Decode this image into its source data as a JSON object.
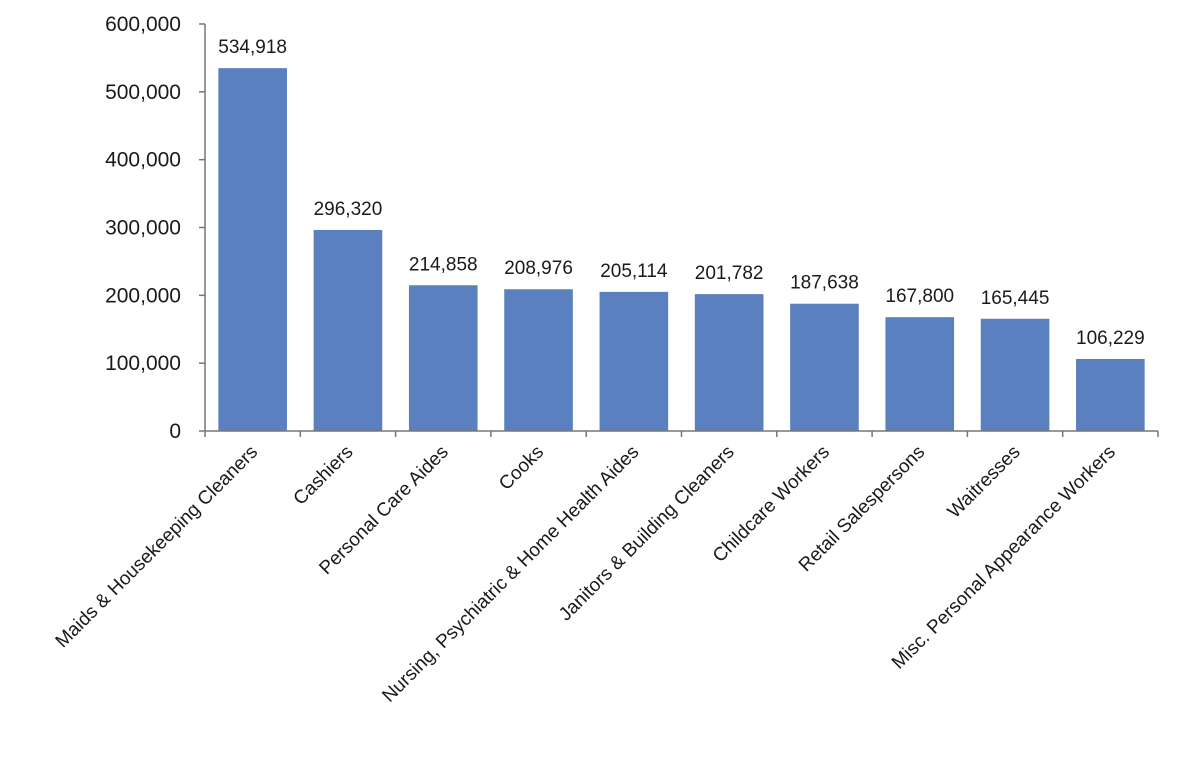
{
  "chart_data": {
    "type": "bar",
    "title": "",
    "xlabel": "",
    "ylabel": "",
    "ylim": [
      0,
      600000
    ],
    "y_ticks": [
      0,
      100000,
      200000,
      300000,
      400000,
      500000,
      600000
    ],
    "y_tick_labels": [
      "0",
      "100,000",
      "200,000",
      "300,000",
      "400,000",
      "500,000",
      "600,000"
    ],
    "grid": false,
    "legend": "none",
    "bar_color": "#5b80bf",
    "categories": [
      "Maids & Housekeeping Cleaners",
      "Cashiers",
      "Personal Care Aides",
      "Cooks",
      "Nursing, Psychiatric & Home Health Aides",
      "Janitors & Building Cleaners",
      "Childcare Workers",
      "Retail Salespersons",
      "Waitresses",
      "Misc. Personal Appearance Workers"
    ],
    "values": [
      534918,
      296320,
      214858,
      208976,
      205114,
      201782,
      187638,
      167800,
      165445,
      106229
    ],
    "data_labels": [
      "534,918",
      "296,320",
      "214,858",
      "208,976",
      "205,114",
      "201,782",
      "187,638",
      "167,800",
      "165,445",
      "106,229"
    ]
  }
}
